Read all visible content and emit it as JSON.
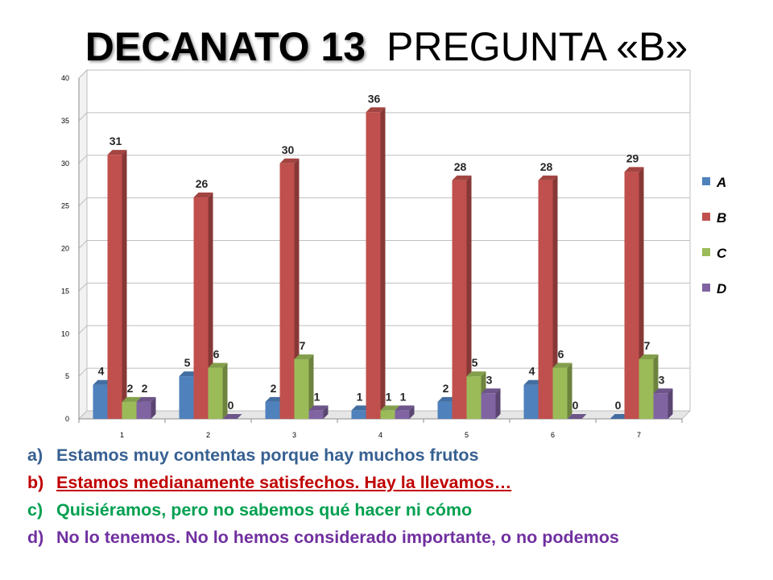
{
  "title": {
    "bold": "DECANATO 13",
    "light": "PREGUNTA «B»"
  },
  "chart_data": {
    "type": "bar",
    "categories": [
      "1",
      "2",
      "3",
      "4",
      "5",
      "6",
      "7"
    ],
    "series": [
      {
        "name": "A",
        "color": "#4f81bd",
        "values": [
          4,
          5,
          2,
          1,
          2,
          4,
          0
        ]
      },
      {
        "name": "B",
        "color": "#c0504d",
        "values": [
          31,
          26,
          30,
          36,
          28,
          28,
          29
        ]
      },
      {
        "name": "C",
        "color": "#9bbb59",
        "values": [
          2,
          6,
          7,
          1,
          5,
          6,
          7
        ]
      },
      {
        "name": "D",
        "color": "#8064a2",
        "values": [
          2,
          0,
          1,
          1,
          3,
          0,
          3
        ]
      }
    ],
    "yticks": [
      "0",
      "5",
      "10",
      "15",
      "20",
      "25",
      "30",
      "35",
      "40"
    ],
    "ylim": [
      0,
      40
    ],
    "grid": true,
    "legend": "right",
    "data_labels": true
  },
  "answers": [
    {
      "letter": "a)",
      "text": "Estamos muy contentas porque hay muchos frutos"
    },
    {
      "letter": "b)",
      "text": "Estamos medianamente satisfechos. Hay la llevamos…"
    },
    {
      "letter": "c)",
      "text": "Quisiéramos, pero no sabemos qué hacer ni cómo"
    },
    {
      "letter": "d)",
      "text": "No lo tenemos. No lo hemos considerado importante, o no podemos"
    }
  ]
}
